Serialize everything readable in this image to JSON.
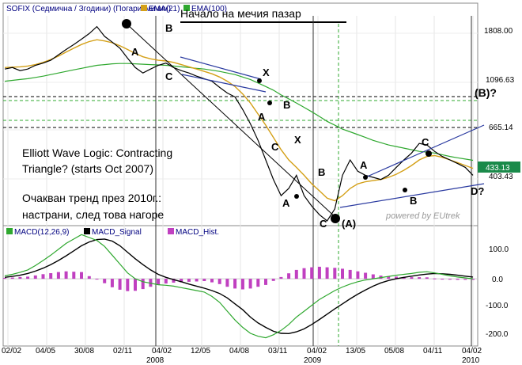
{
  "chart_data": {
    "type": "line",
    "title": "SOFIX (Седмична / Згодини) (Погаритмични)",
    "instrument": "SOFIX",
    "scale": "log",
    "grid": true,
    "legend_placement": "top-left",
    "top_legend": [
      {
        "name": "EMA(21)",
        "color": "#d4a017"
      },
      {
        "name": "EMA(100)",
        "color": "#2fa82f"
      }
    ],
    "y_ticks_price": [
      "1808.00",
      "1096.63",
      "665.14",
      "403.43"
    ],
    "last_price": "433.13",
    "x_ticks": [
      "02/02",
      "04/05",
      "30/08",
      "02/11",
      "04/02",
      "12/05",
      "04/08",
      "03/11",
      "04/02",
      "13/05",
      "05/08",
      "04/11",
      "04/02"
    ],
    "year_labels": [
      "2008",
      "2009",
      "2010"
    ],
    "annotations": {
      "market_start": "Начало на мечия пазар",
      "elliott": [
        "Elliott Wave Logic: Contracting",
        "Triangle? (starts Oct 2007)"
      ],
      "expected": [
        "Очакван тренд през 2010г.:",
        "настрани, след това нагоре"
      ],
      "credit": "powered by EUtrek",
      "wave_labels": [
        "A",
        "B",
        "C",
        "X",
        "A",
        "B",
        "C",
        "X",
        "A",
        "B",
        "C",
        "(A)",
        "A",
        "B",
        "C",
        "D?",
        "(B)?"
      ]
    },
    "series": [
      {
        "name": "SOFIX",
        "color": "#000000",
        "values": [
          1400,
          1420,
          1380,
          1400,
          1450,
          1480,
          1520,
          1600,
          1680,
          1760,
          1850,
          1950,
          2080,
          1900,
          1800,
          1700,
          1550,
          1420,
          1350,
          1400,
          1450,
          1480,
          1420,
          1380,
          1350,
          1310,
          1280,
          1250,
          1180,
          1120,
          1080,
          960,
          840,
          720,
          600,
          500,
          430,
          460,
          520,
          430,
          390,
          360,
          340,
          380,
          520,
          600,
          540,
          520,
          510,
          500,
          520,
          560,
          600,
          640,
          700,
          690,
          650,
          620,
          600,
          580,
          560,
          520
        ]
      },
      {
        "name": "EMA(21)",
        "color": "#d4a017",
        "values": [
          1420,
          1425,
          1430,
          1440,
          1460,
          1490,
          1530,
          1580,
          1640,
          1700,
          1760,
          1810,
          1840,
          1820,
          1790,
          1740,
          1680,
          1620,
          1570,
          1540,
          1520,
          1510,
          1490,
          1460,
          1430,
          1400,
          1370,
          1340,
          1300,
          1250,
          1190,
          1110,
          1020,
          920,
          830,
          740,
          660,
          600,
          560,
          520,
          480,
          450,
          420,
          410,
          430,
          460,
          480,
          490,
          495,
          500,
          510,
          525,
          545,
          570,
          600,
          620,
          625,
          615,
          600,
          585,
          570,
          555
        ]
      },
      {
        "name": "EMA(100)",
        "color": "#2fa82f",
        "values": [
          1250,
          1260,
          1270,
          1280,
          1295,
          1310,
          1330,
          1350,
          1370,
          1390,
          1410,
          1430,
          1450,
          1460,
          1470,
          1475,
          1475,
          1470,
          1465,
          1460,
          1455,
          1450,
          1440,
          1430,
          1420,
          1410,
          1400,
          1385,
          1370,
          1350,
          1330,
          1300,
          1270,
          1230,
          1190,
          1150,
          1100,
          1060,
          1020,
          980,
          940,
          900,
          860,
          830,
          800,
          780,
          760,
          740,
          720,
          705,
          690,
          680,
          670,
          660,
          650,
          645,
          640,
          630,
          620,
          612,
          605,
          598
        ]
      }
    ],
    "macd": {
      "legend": [
        {
          "name": "MACD(12,26,9)",
          "color": "#2fa82f"
        },
        {
          "name": "MACD_Signal",
          "color": "#000000"
        },
        {
          "name": "MACD_Hist.",
          "color": "#c040c0"
        }
      ],
      "y_ticks": [
        "100.0",
        "0.0",
        "-100.0",
        "-200.0"
      ],
      "ylim": [
        -220,
        140
      ],
      "macd": [
        10,
        15,
        22,
        30,
        45,
        62,
        80,
        100,
        120,
        135,
        150,
        140,
        130,
        110,
        80,
        50,
        20,
        0,
        -10,
        -15,
        -20,
        -22,
        -25,
        -30,
        -35,
        -40,
        -45,
        -60,
        -80,
        -110,
        -140,
        -165,
        -185,
        -195,
        -200,
        -190,
        -175,
        -155,
        -130,
        -110,
        -90,
        -70,
        -55,
        -40,
        -28,
        -18,
        -10,
        -4,
        0,
        4,
        8,
        12,
        15,
        18,
        22,
        24,
        20,
        15,
        10,
        6,
        3,
        0
      ],
      "signal": [
        5,
        8,
        12,
        18,
        26,
        36,
        48,
        62,
        78,
        95,
        112,
        125,
        133,
        135,
        128,
        112,
        90,
        68,
        48,
        30,
        15,
        5,
        -3,
        -10,
        -18,
        -25,
        -32,
        -40,
        -50,
        -65,
        -85,
        -105,
        -130,
        -150,
        -165,
        -178,
        -185,
        -186,
        -180,
        -170,
        -155,
        -138,
        -120,
        -102,
        -85,
        -68,
        -52,
        -38,
        -25,
        -14,
        -6,
        0,
        5,
        9,
        13,
        16,
        18,
        17,
        15,
        12,
        9,
        6
      ]
    }
  }
}
